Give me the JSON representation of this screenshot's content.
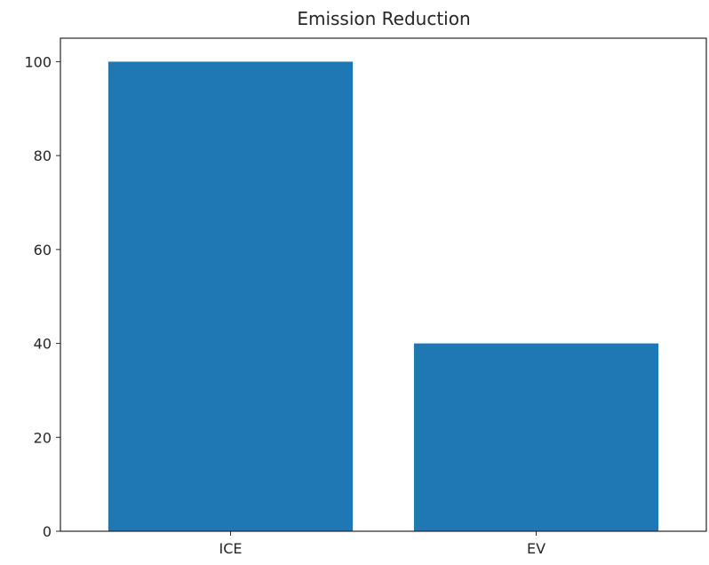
{
  "chart_data": {
    "type": "bar",
    "title": "Emission Reduction",
    "xlabel": "",
    "ylabel": "",
    "categories": [
      "ICE",
      "EV"
    ],
    "values": [
      100,
      40
    ],
    "ylim": [
      0,
      105
    ],
    "yticks": [
      0,
      20,
      40,
      60,
      80,
      100
    ],
    "grid": false,
    "bar_color": "#1f77b4"
  }
}
